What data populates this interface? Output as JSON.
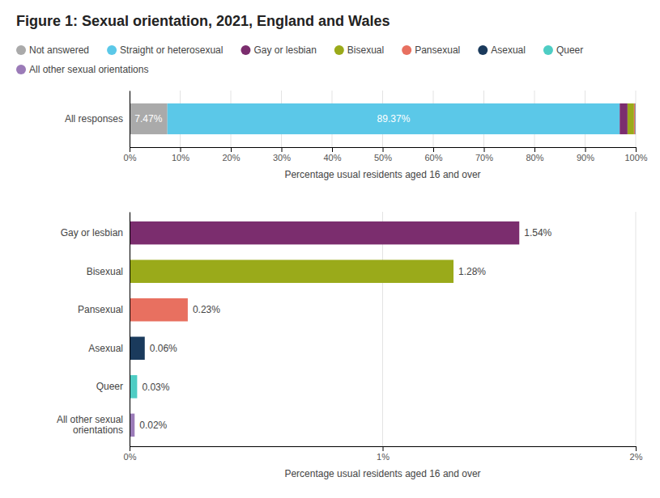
{
  "chart_data": [
    {
      "type": "bar",
      "title": "Figure 1: Sexual orientation, 2021, England and Wales",
      "orientation": "horizontal",
      "stacked": true,
      "grid": true,
      "legend": "top",
      "categories": [
        "All responses"
      ],
      "xlabel": "Percentage usual residents aged 16 and over",
      "xlim": [
        0,
        100
      ],
      "xticks": [
        {
          "value": 0,
          "label": "0%"
        },
        {
          "value": 10,
          "label": "10%"
        },
        {
          "value": 20,
          "label": "20%"
        },
        {
          "value": 30,
          "label": "30%"
        },
        {
          "value": 40,
          "label": "40%"
        },
        {
          "value": 50,
          "label": "50%"
        },
        {
          "value": 60,
          "label": "60%"
        },
        {
          "value": 70,
          "label": "70%"
        },
        {
          "value": 80,
          "label": "80%"
        },
        {
          "value": 90,
          "label": "90%"
        },
        {
          "value": 100,
          "label": "100%"
        }
      ],
      "series": [
        {
          "name": "Not answered",
          "color": "#aaaaaa",
          "values": [
            7.47
          ],
          "value_labels": [
            "7.47%"
          ]
        },
        {
          "name": "Straight or heterosexual",
          "color": "#5bc8e8",
          "values": [
            89.37
          ],
          "value_labels": [
            "89.37%"
          ]
        },
        {
          "name": "Gay or lesbian",
          "color": "#7b2d6e",
          "values": [
            1.54
          ]
        },
        {
          "name": "Bisexual",
          "color": "#9aaa1a",
          "values": [
            1.28
          ]
        },
        {
          "name": "Pansexual",
          "color": "#e87060",
          "values": [
            0.23
          ]
        },
        {
          "name": "Asexual",
          "color": "#1a3a5c",
          "values": [
            0.06
          ]
        },
        {
          "name": "Queer",
          "color": "#4ecdc4",
          "values": [
            0.03
          ]
        },
        {
          "name": "All other sexual orientations",
          "color": "#9b7bb8",
          "values": [
            0.02
          ]
        }
      ]
    },
    {
      "type": "bar",
      "orientation": "horizontal",
      "grid": true,
      "categories": [
        "Gay or lesbian",
        "Bisexual",
        "Pansexual",
        "Asexual",
        "Queer",
        "All other sexual\norientations"
      ],
      "values": [
        1.54,
        1.28,
        0.23,
        0.06,
        0.03,
        0.02
      ],
      "colors": [
        "#7b2d6e",
        "#9aaa1a",
        "#e87060",
        "#1a3a5c",
        "#4ecdc4",
        "#9b7bb8"
      ],
      "value_labels": [
        "1.54%",
        "1.28%",
        "0.23%",
        "0.06%",
        "0.03%",
        "0.02%"
      ],
      "xlabel": "Percentage usual residents aged 16 and over",
      "xlim": [
        0,
        2
      ],
      "xticks": [
        {
          "value": 0,
          "label": "0%"
        },
        {
          "value": 1,
          "label": "1%"
        },
        {
          "value": 2,
          "label": "2%"
        }
      ]
    }
  ]
}
